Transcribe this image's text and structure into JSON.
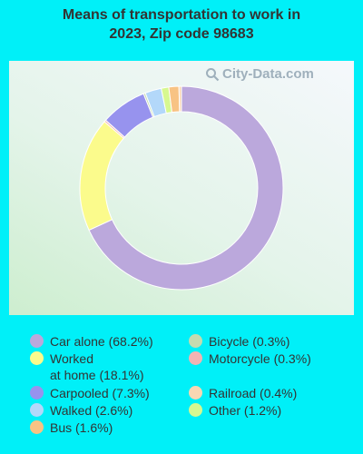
{
  "title": "Means of transportation to work in\n2023, Zip code 98683",
  "watermark": "City-Data.com",
  "chart_data": {
    "type": "pie",
    "title": "Means of transportation to work in 2023, Zip code 98683",
    "series": [
      {
        "name": "Car alone",
        "label": "Car alone (68.2%)",
        "value": 68.2,
        "color": "#bba8dc"
      },
      {
        "name": "Worked at home",
        "label": "Worked\nat home (18.1%)",
        "value": 18.1,
        "color": "#fbfb8c"
      },
      {
        "name": "Carpooled",
        "label": "Carpooled (7.3%)",
        "value": 7.3,
        "color": "#9793ee"
      },
      {
        "name": "Walked",
        "label": "Walked (2.6%)",
        "value": 2.6,
        "color": "#b3d8fa"
      },
      {
        "name": "Bus",
        "label": "Bus (1.6%)",
        "value": 1.6,
        "color": "#f8c384"
      },
      {
        "name": "Bicycle",
        "label": "Bicycle (0.3%)",
        "value": 0.3,
        "color": "#c4dbb0"
      },
      {
        "name": "Motorcycle",
        "label": "Motorcycle (0.3%)",
        "value": 0.3,
        "color": "#f2b3b3"
      },
      {
        "name": "Railroad",
        "label": "Railroad (0.4%)",
        "value": 0.4,
        "color": "#f9d7b3"
      },
      {
        "name": "Other",
        "label": "Other (1.2%)",
        "value": 1.2,
        "color": "#d7f890"
      }
    ],
    "draw_order": [
      "Car alone",
      "Worked at home",
      "Motorcycle",
      "Carpooled",
      "Bicycle",
      "Walked",
      "Other",
      "Bus",
      "Railroad"
    ],
    "legend_order": [
      "Car alone",
      "Worked at home",
      "Carpooled",
      "Walked",
      "Bus",
      "Bicycle",
      "Motorcycle",
      "Railroad",
      "Other"
    ]
  }
}
